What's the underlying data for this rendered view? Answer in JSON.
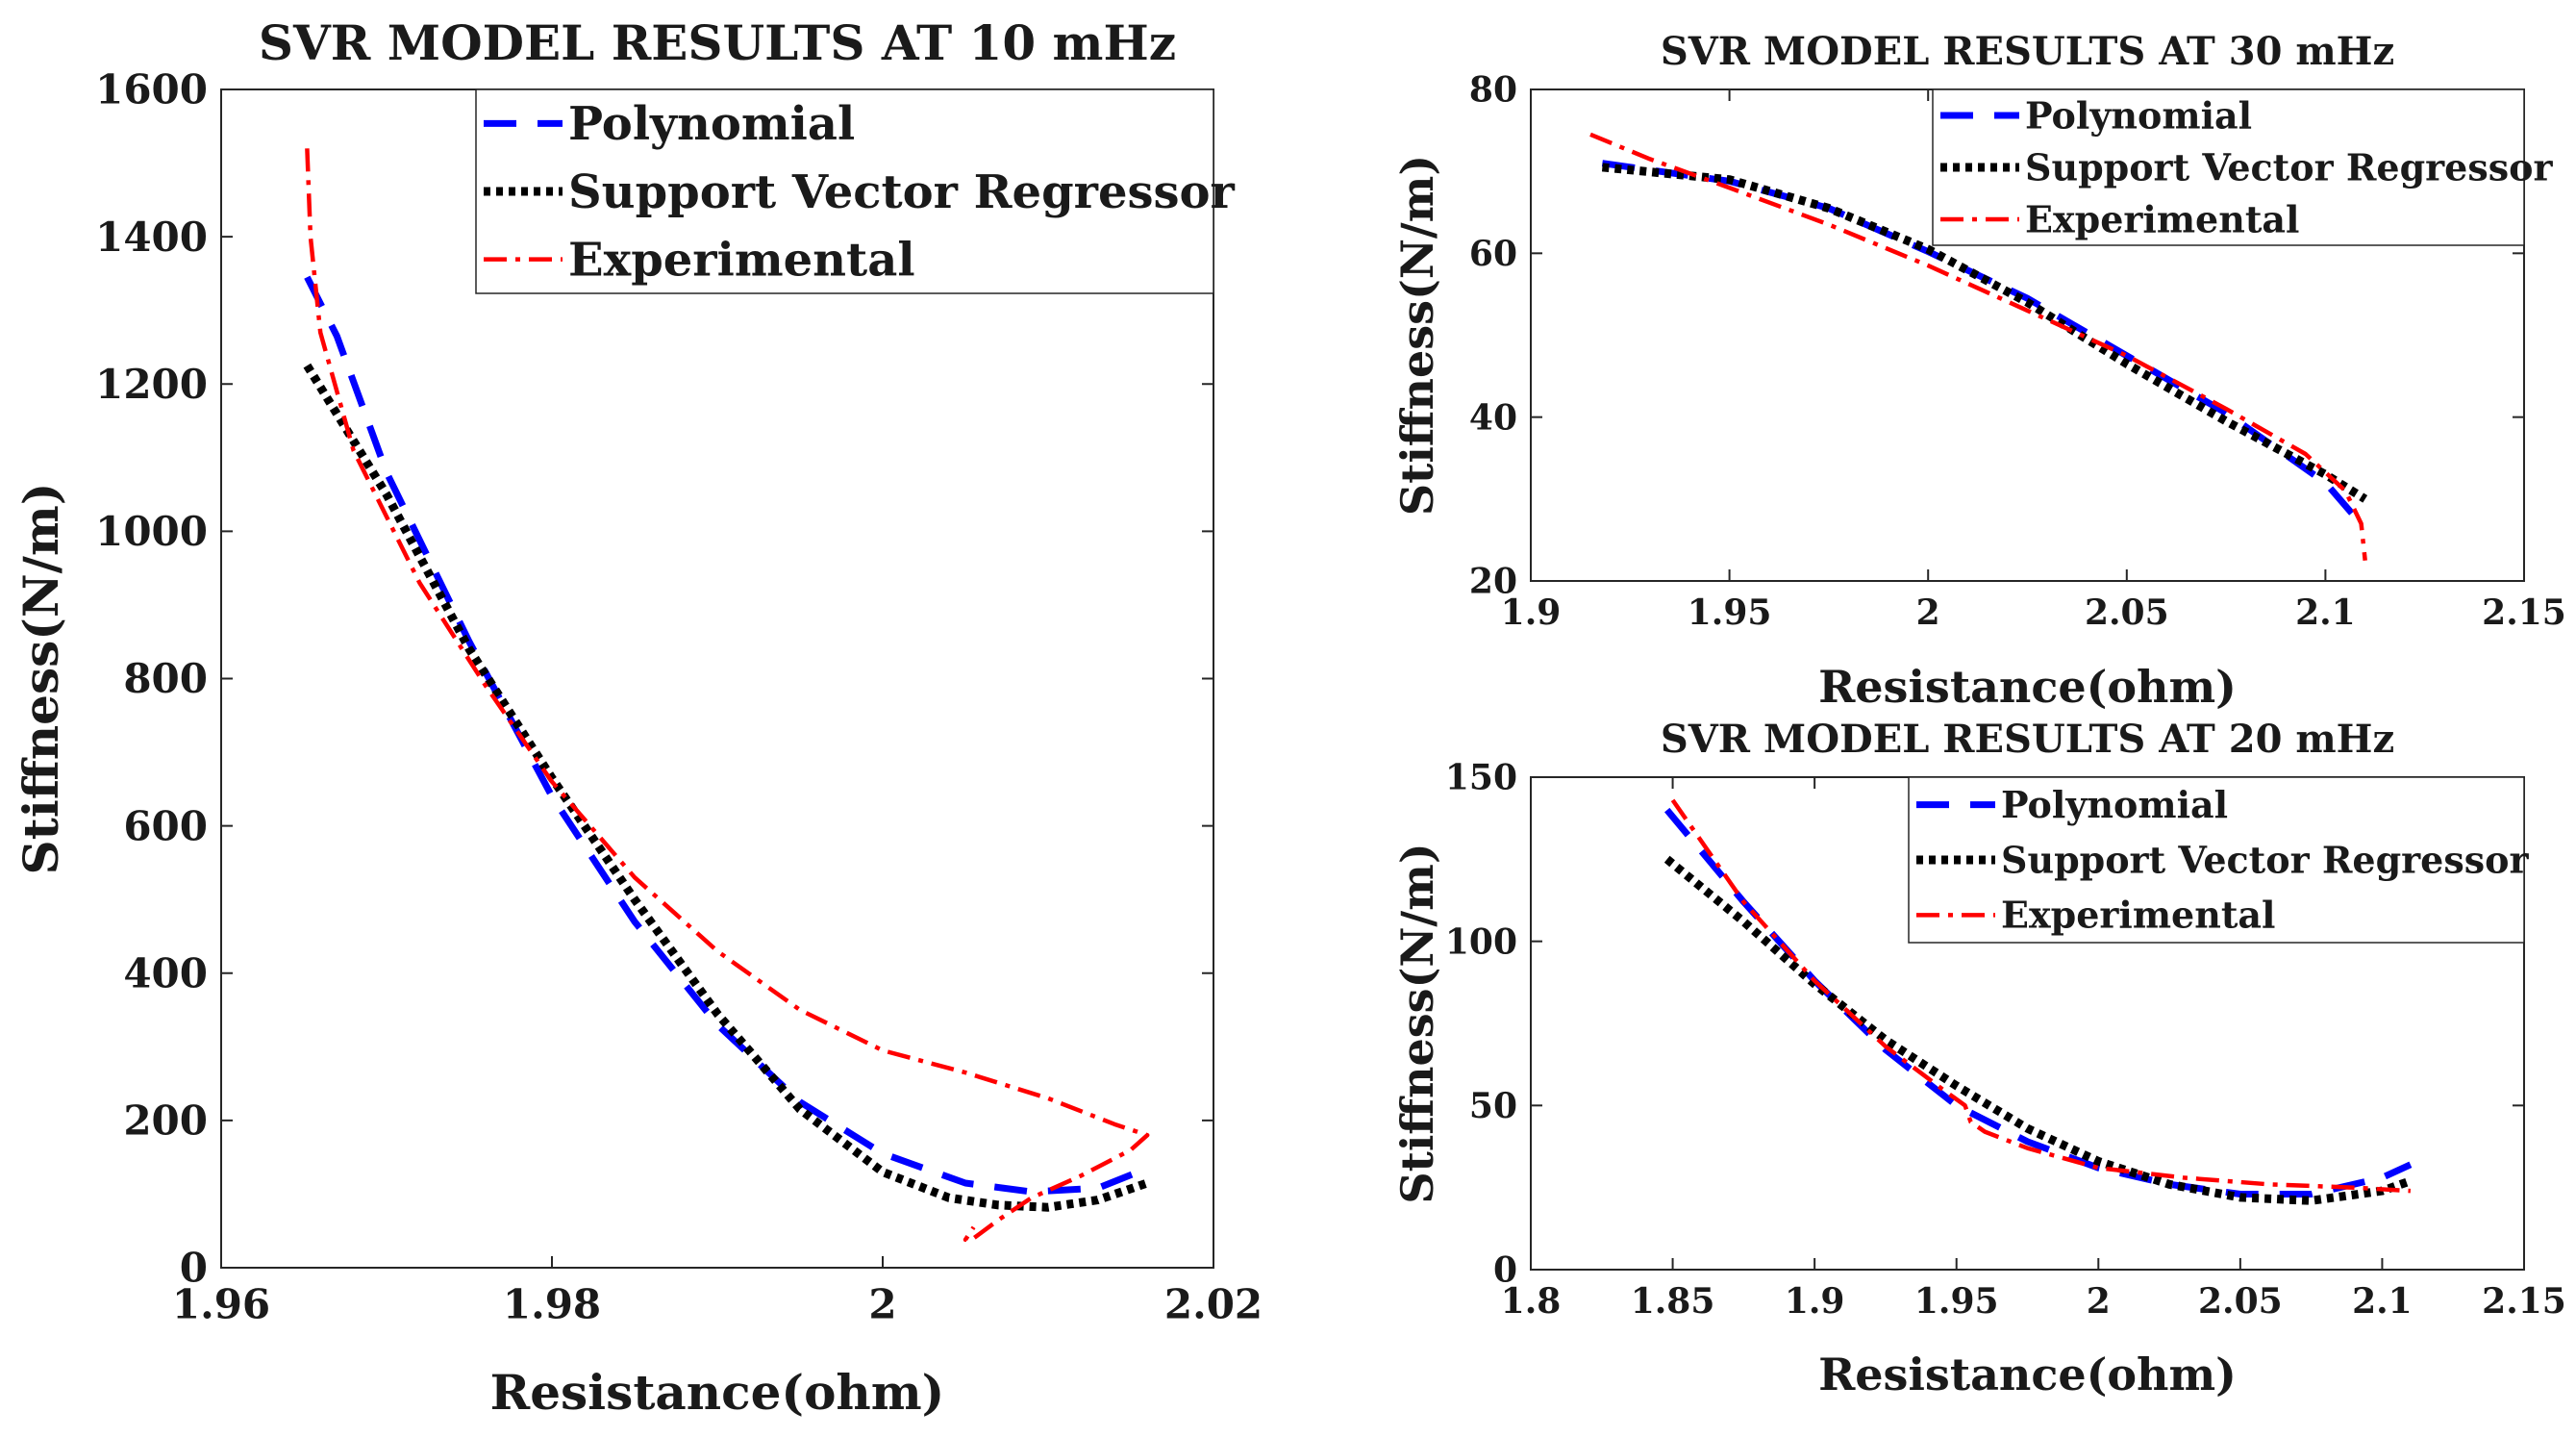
{
  "colors": {
    "polynomial": "#0000ff",
    "svr": "#000000",
    "experimental": "#ff0000"
  },
  "chart_data": [
    {
      "id": "left",
      "type": "line",
      "title": "SVR MODEL RESULTS AT 10 mHz",
      "xlabel": "Resistance(ohm)",
      "ylabel": "Stiffness(N/m)",
      "xlim": [
        1.96,
        2.02
      ],
      "ylim": [
        0,
        1600
      ],
      "xticks": [
        1.96,
        1.98,
        2,
        2.02
      ],
      "xtick_labels": [
        "1.96",
        "1.98",
        "2",
        "2.02"
      ],
      "yticks": [
        0,
        200,
        400,
        600,
        800,
        1000,
        1200,
        1400,
        1600
      ],
      "ytick_labels": [
        "0",
        "200",
        "400",
        "600",
        "800",
        "1000",
        "1200",
        "1400",
        "1600"
      ],
      "legend_position": "top-right",
      "series": [
        {
          "name": "Polynomial",
          "style": "dashed",
          "color_key": "polynomial",
          "x": [
            1.9652,
            1.967,
            1.97,
            1.975,
            1.98,
            1.985,
            1.99,
            1.995,
            2.0,
            2.005,
            2.009,
            2.013,
            2.016
          ],
          "y": [
            1345,
            1265,
            1080,
            850,
            640,
            470,
            330,
            225,
            155,
            115,
            103,
            108,
            135
          ]
        },
        {
          "name": "Support Vector Regressor",
          "style": "dotted",
          "color_key": "svr",
          "x": [
            1.9652,
            1.97,
            1.975,
            1.98,
            1.985,
            1.99,
            1.995,
            2.0,
            2.004,
            2.007,
            2.01,
            2.013,
            2.016
          ],
          "y": [
            1225,
            1050,
            840,
            665,
            500,
            345,
            215,
            130,
            95,
            85,
            82,
            92,
            115
          ]
        },
        {
          "name": "Experimental",
          "style": "dashdot",
          "color_key": "experimental",
          "x": [
            1.9652,
            1.9654,
            1.966,
            1.968,
            1.972,
            1.976,
            1.98,
            1.985,
            1.99,
            1.995,
            2.0,
            2.005,
            2.01,
            2.014,
            2.016,
            2.015,
            2.012,
            2.009,
            2.007,
            2.0055,
            2.005,
            2.0055
          ],
          "y": [
            1520,
            1400,
            1270,
            1110,
            930,
            790,
            660,
            530,
            430,
            350,
            295,
            265,
            230,
            195,
            180,
            160,
            125,
            95,
            65,
            40,
            38,
            55
          ]
        }
      ]
    },
    {
      "id": "top-right",
      "type": "line",
      "title": "SVR MODEL RESULTS AT 30 mHz",
      "xlabel": "Resistance(ohm)",
      "ylabel": "Stiffness(N/m)",
      "xlim": [
        1.9,
        2.15
      ],
      "ylim": [
        20,
        80
      ],
      "xticks": [
        1.9,
        1.95,
        2,
        2.05,
        2.1,
        2.15
      ],
      "xtick_labels": [
        "1.9",
        "1.95",
        "2",
        "2.05",
        "2.1",
        "2.15"
      ],
      "yticks": [
        20,
        40,
        60,
        80
      ],
      "ytick_labels": [
        "20",
        "40",
        "60",
        "80"
      ],
      "legend_position": "top-right",
      "series": [
        {
          "name": "Polynomial",
          "style": "dashed",
          "color_key": "polynomial",
          "x": [
            1.918,
            1.95,
            1.975,
            2.0,
            2.025,
            2.05,
            2.075,
            2.1,
            2.108
          ],
          "y": [
            71.0,
            68.8,
            65.5,
            60.2,
            54.5,
            47.5,
            40.5,
            32.0,
            27.5
          ]
        },
        {
          "name": "Support Vector Regressor",
          "style": "dotted",
          "color_key": "svr",
          "x": [
            1.918,
            1.95,
            1.975,
            2.0,
            2.025,
            2.05,
            2.075,
            2.1,
            2.11
          ],
          "y": [
            70.5,
            69.0,
            65.5,
            60.5,
            54.0,
            46.5,
            39.5,
            33.0,
            30.0
          ]
        },
        {
          "name": "Experimental",
          "style": "dashdot",
          "color_key": "experimental",
          "x": [
            1.915,
            1.93,
            1.95,
            1.975,
            2.0,
            2.025,
            2.05,
            2.075,
            2.095,
            2.105,
            2.109,
            2.11
          ],
          "y": [
            74.5,
            71.5,
            68.0,
            63.5,
            58.5,
            53.0,
            47.5,
            41.0,
            35.5,
            31.0,
            27.0,
            22.5
          ]
        }
      ]
    },
    {
      "id": "bottom-right",
      "type": "line",
      "title": "SVR MODEL RESULTS AT 20 mHz",
      "xlabel": "Resistance(ohm)",
      "ylabel": "Stiffness(N/m)",
      "xlim": [
        1.8,
        2.15
      ],
      "ylim": [
        0,
        150
      ],
      "xticks": [
        1.8,
        1.85,
        1.9,
        1.95,
        2,
        2.05,
        2.1,
        2.15
      ],
      "xtick_labels": [
        "1.8",
        "1.85",
        "1.9",
        "1.95",
        "2",
        "2.05",
        "2.1",
        "2.15"
      ],
      "yticks": [
        0,
        50,
        100,
        150
      ],
      "ytick_labels": [
        "0",
        "50",
        "100",
        "150"
      ],
      "legend_position": "top-right",
      "series": [
        {
          "name": "Polynomial",
          "style": "dashed",
          "color_key": "polynomial",
          "x": [
            1.848,
            1.875,
            1.9,
            1.925,
            1.95,
            1.975,
            2.0,
            2.025,
            2.05,
            2.075,
            2.1,
            2.11
          ],
          "y": [
            140,
            112,
            88,
            67,
            50,
            39,
            31,
            26,
            23,
            23,
            28,
            32
          ]
        },
        {
          "name": "Support Vector Regressor",
          "style": "dotted",
          "color_key": "svr",
          "x": [
            1.848,
            1.875,
            1.9,
            1.925,
            1.95,
            1.975,
            2.0,
            2.025,
            2.05,
            2.075,
            2.1,
            2.11
          ],
          "y": [
            125,
            106,
            87,
            70,
            56,
            43,
            33,
            26,
            22,
            21,
            24,
            27
          ]
        },
        {
          "name": "Experimental",
          "style": "dashdot",
          "color_key": "experimental",
          "x": [
            1.85,
            1.875,
            1.9,
            1.925,
            1.945,
            1.953,
            1.955,
            1.96,
            1.975,
            2.0,
            2.03,
            2.06,
            2.09,
            2.11
          ],
          "y": [
            143,
            112,
            88,
            68,
            55,
            50,
            45,
            42,
            37,
            31,
            28,
            26,
            25,
            24
          ]
        }
      ]
    }
  ]
}
